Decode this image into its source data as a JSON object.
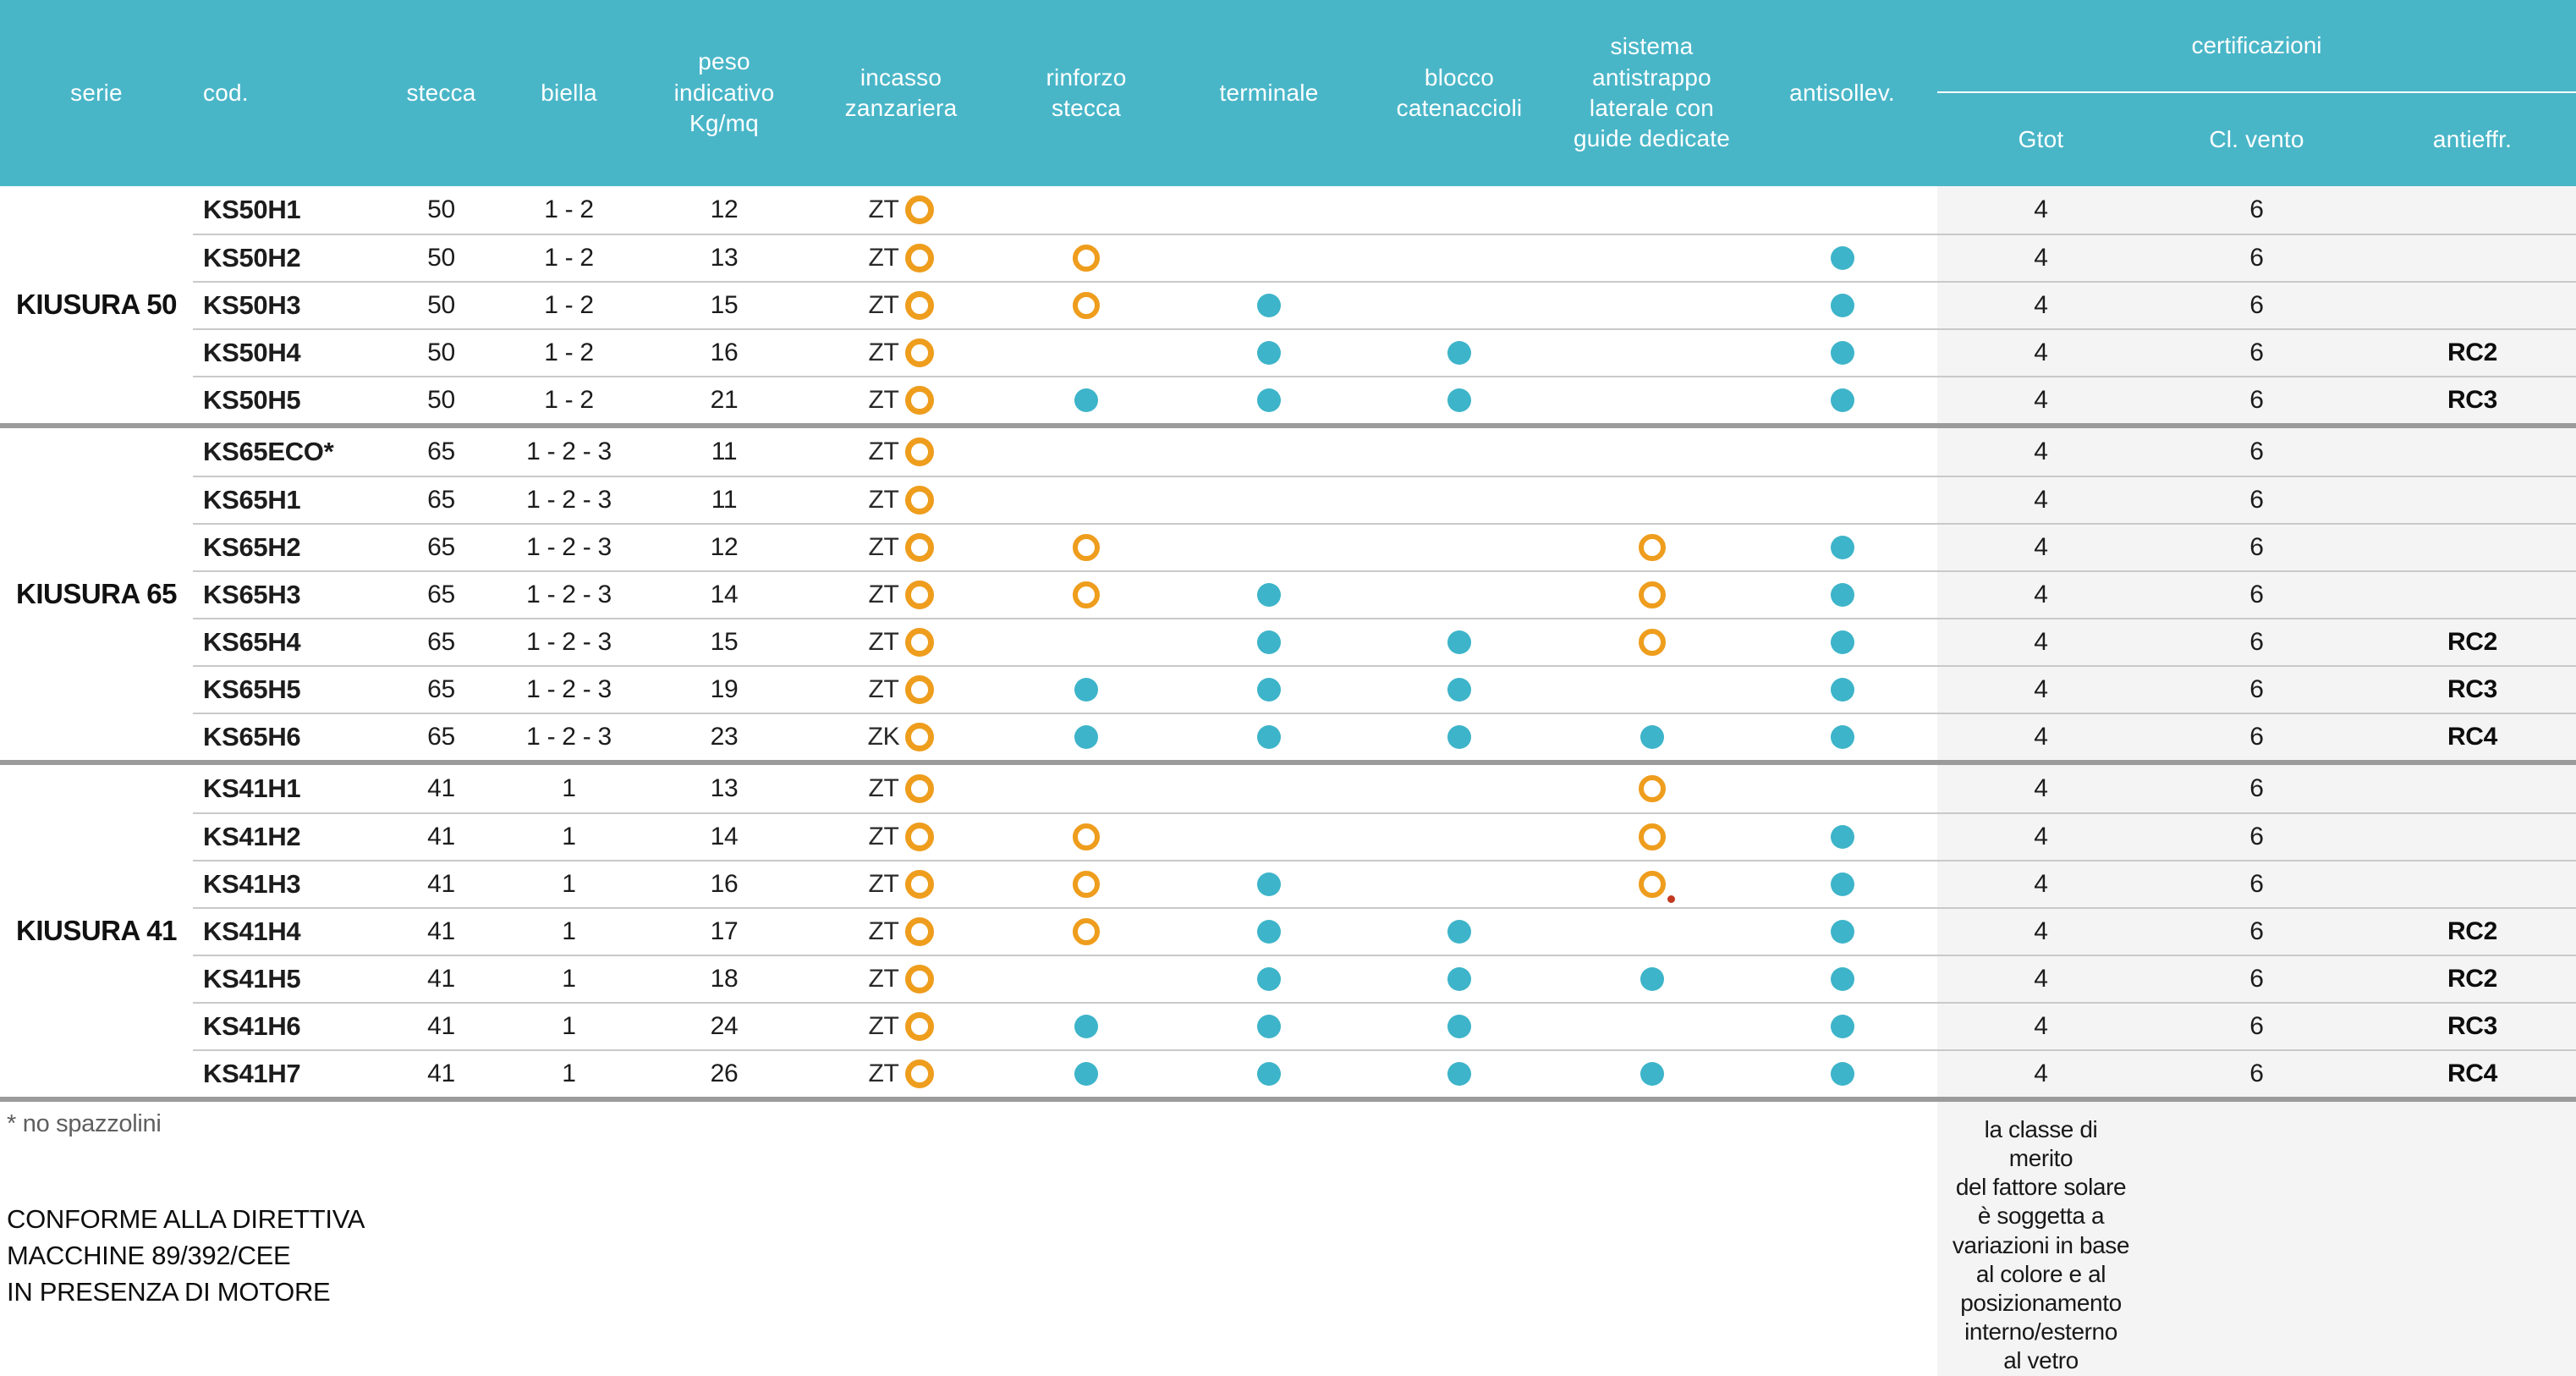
{
  "colors": {
    "header_teal": "#49b6c8",
    "dot_teal": "#3db4c9",
    "ring_orange": "#ee9d1d",
    "cert_band_gray": "#f4f4f4",
    "thin_line": "#c9c9c9",
    "thick_line": "#9b9b9b",
    "note_marker_red": "#c2391f"
  },
  "table": {
    "headers": {
      "serie": "serie",
      "cod": "cod.",
      "stecca": "stecca",
      "biella": "biella",
      "peso": "peso\nindicativo\nKg/mq",
      "incasso": "incasso\nzanzariera",
      "rinforzo": "rinforzo\nstecca",
      "terminale": "terminale",
      "blocco": "blocco\ncatenaccioli",
      "sistema": "sistema\nantistrappo\nlaterale con\nguide dedicate",
      "antisollev": "antisollev.",
      "certificazioni": "certificazioni",
      "gtot": "Gtot",
      "cl_vento": "Cl. vento",
      "antieffr": "antieffr."
    },
    "legend": {
      "dot": "feature included (teal dot)",
      "ring": "feature optional (orange ring)"
    },
    "groups": [
      {
        "serie": "KIUSURA 50",
        "rows": [
          {
            "cod": "KS50H1",
            "stecca": "50",
            "biella": "1 - 2",
            "peso": "12",
            "incasso": "ZT",
            "marks": {
              "rinforzo": "",
              "terminale": "",
              "blocco": "",
              "sistema": "",
              "antisollev": ""
            },
            "gtot": "4",
            "cl_vento": "6",
            "antieffr": ""
          },
          {
            "cod": "KS50H2",
            "stecca": "50",
            "biella": "1 - 2",
            "peso": "13",
            "incasso": "ZT",
            "marks": {
              "rinforzo": "ring",
              "terminale": "",
              "blocco": "",
              "sistema": "",
              "antisollev": "dot"
            },
            "gtot": "4",
            "cl_vento": "6",
            "antieffr": ""
          },
          {
            "cod": "KS50H3",
            "stecca": "50",
            "biella": "1 - 2",
            "peso": "15",
            "incasso": "ZT",
            "marks": {
              "rinforzo": "ring",
              "terminale": "dot",
              "blocco": "",
              "sistema": "",
              "antisollev": "dot"
            },
            "gtot": "4",
            "cl_vento": "6",
            "antieffr": ""
          },
          {
            "cod": "KS50H4",
            "stecca": "50",
            "biella": "1 - 2",
            "peso": "16",
            "incasso": "ZT",
            "marks": {
              "rinforzo": "",
              "terminale": "dot",
              "blocco": "dot",
              "sistema": "",
              "antisollev": "dot"
            },
            "gtot": "4",
            "cl_vento": "6",
            "antieffr": "RC2"
          },
          {
            "cod": "KS50H5",
            "stecca": "50",
            "biella": "1 - 2",
            "peso": "21",
            "incasso": "ZT",
            "marks": {
              "rinforzo": "dot",
              "terminale": "dot",
              "blocco": "dot",
              "sistema": "",
              "antisollev": "dot"
            },
            "gtot": "4",
            "cl_vento": "6",
            "antieffr": "RC3"
          }
        ]
      },
      {
        "serie": "KIUSURA 65",
        "rows": [
          {
            "cod": "KS65ECO*",
            "stecca": "65",
            "biella": "1 - 2 - 3",
            "peso": "11",
            "incasso": "ZT",
            "marks": {
              "rinforzo": "",
              "terminale": "",
              "blocco": "",
              "sistema": "",
              "antisollev": ""
            },
            "gtot": "4",
            "cl_vento": "6",
            "antieffr": ""
          },
          {
            "cod": "KS65H1",
            "stecca": "65",
            "biella": "1 - 2 - 3",
            "peso": "11",
            "incasso": "ZT",
            "marks": {
              "rinforzo": "",
              "terminale": "",
              "blocco": "",
              "sistema": "",
              "antisollev": ""
            },
            "gtot": "4",
            "cl_vento": "6",
            "antieffr": ""
          },
          {
            "cod": "KS65H2",
            "stecca": "65",
            "biella": "1 - 2 - 3",
            "peso": "12",
            "incasso": "ZT",
            "marks": {
              "rinforzo": "ring",
              "terminale": "",
              "blocco": "",
              "sistema": "ring",
              "antisollev": "dot"
            },
            "gtot": "4",
            "cl_vento": "6",
            "antieffr": ""
          },
          {
            "cod": "KS65H3",
            "stecca": "65",
            "biella": "1 - 2 - 3",
            "peso": "14",
            "incasso": "ZT",
            "marks": {
              "rinforzo": "ring",
              "terminale": "dot",
              "blocco": "",
              "sistema": "ring",
              "antisollev": "dot"
            },
            "gtot": "4",
            "cl_vento": "6",
            "antieffr": ""
          },
          {
            "cod": "KS65H4",
            "stecca": "65",
            "biella": "1 - 2 - 3",
            "peso": "15",
            "incasso": "ZT",
            "marks": {
              "rinforzo": "",
              "terminale": "dot",
              "blocco": "dot",
              "sistema": "ring",
              "antisollev": "dot"
            },
            "gtot": "4",
            "cl_vento": "6",
            "antieffr": "RC2"
          },
          {
            "cod": "KS65H5",
            "stecca": "65",
            "biella": "1 - 2 - 3",
            "peso": "19",
            "incasso": "ZT",
            "marks": {
              "rinforzo": "dot",
              "terminale": "dot",
              "blocco": "dot",
              "sistema": "",
              "antisollev": "dot"
            },
            "gtot": "4",
            "cl_vento": "6",
            "antieffr": "RC3"
          },
          {
            "cod": "KS65H6",
            "stecca": "65",
            "biella": "1 - 2 - 3",
            "peso": "23",
            "incasso": "ZK",
            "marks": {
              "rinforzo": "dot",
              "terminale": "dot",
              "blocco": "dot",
              "sistema": "dot",
              "antisollev": "dot"
            },
            "gtot": "4",
            "cl_vento": "6",
            "antieffr": "RC4"
          }
        ]
      },
      {
        "serie": "KIUSURA 41",
        "rows": [
          {
            "cod": "KS41H1",
            "stecca": "41",
            "biella": "1",
            "peso": "13",
            "incasso": "ZT",
            "marks": {
              "rinforzo": "",
              "terminale": "",
              "blocco": "",
              "sistema": "ring",
              "antisollev": ""
            },
            "gtot": "4",
            "cl_vento": "6",
            "antieffr": ""
          },
          {
            "cod": "KS41H2",
            "stecca": "41",
            "biella": "1",
            "peso": "14",
            "incasso": "ZT",
            "marks": {
              "rinforzo": "ring",
              "terminale": "",
              "blocco": "",
              "sistema": "ring",
              "antisollev": "dot"
            },
            "gtot": "4",
            "cl_vento": "6",
            "antieffr": ""
          },
          {
            "cod": "KS41H3",
            "stecca": "41",
            "biella": "1",
            "peso": "16",
            "incasso": "ZT",
            "marks": {
              "rinforzo": "ring",
              "terminale": "dot",
              "blocco": "",
              "sistema": "ring-note",
              "antisollev": "dot"
            },
            "gtot": "4",
            "cl_vento": "6",
            "antieffr": ""
          },
          {
            "cod": "KS41H4",
            "stecca": "41",
            "biella": "1",
            "peso": "17",
            "incasso": "ZT",
            "marks": {
              "rinforzo": "ring",
              "terminale": "dot",
              "blocco": "dot",
              "sistema": "",
              "antisollev": "dot"
            },
            "gtot": "4",
            "cl_vento": "6",
            "antieffr": "RC2"
          },
          {
            "cod": "KS41H5",
            "stecca": "41",
            "biella": "1",
            "peso": "18",
            "incasso": "ZT",
            "marks": {
              "rinforzo": "",
              "terminale": "dot",
              "blocco": "dot",
              "sistema": "dot",
              "antisollev": "dot"
            },
            "gtot": "4",
            "cl_vento": "6",
            "antieffr": "RC2"
          },
          {
            "cod": "KS41H6",
            "stecca": "41",
            "biella": "1",
            "peso": "24",
            "incasso": "ZT",
            "marks": {
              "rinforzo": "dot",
              "terminale": "dot",
              "blocco": "dot",
              "sistema": "",
              "antisollev": "dot"
            },
            "gtot": "4",
            "cl_vento": "6",
            "antieffr": "RC3"
          },
          {
            "cod": "KS41H7",
            "stecca": "41",
            "biella": "1",
            "peso": "26",
            "incasso": "ZT",
            "marks": {
              "rinforzo": "dot",
              "terminale": "dot",
              "blocco": "dot",
              "sistema": "dot",
              "antisollev": "dot"
            },
            "gtot": "4",
            "cl_vento": "6",
            "antieffr": "RC4"
          }
        ]
      }
    ]
  },
  "footnotes": {
    "no_spazzolini": "* no spazzolini",
    "conforme": "CONFORME ALLA DIRETTIVA\nMACCHINE 89/392/CEE\nIN PRESENZA DI MOTORE",
    "gtot_note": "la classe di\nmerito\ndel fattore solare\nè soggetta a\nvariazioni in base\nal colore e al\nposizionamento\ninterno/esterno\nal vetro"
  }
}
